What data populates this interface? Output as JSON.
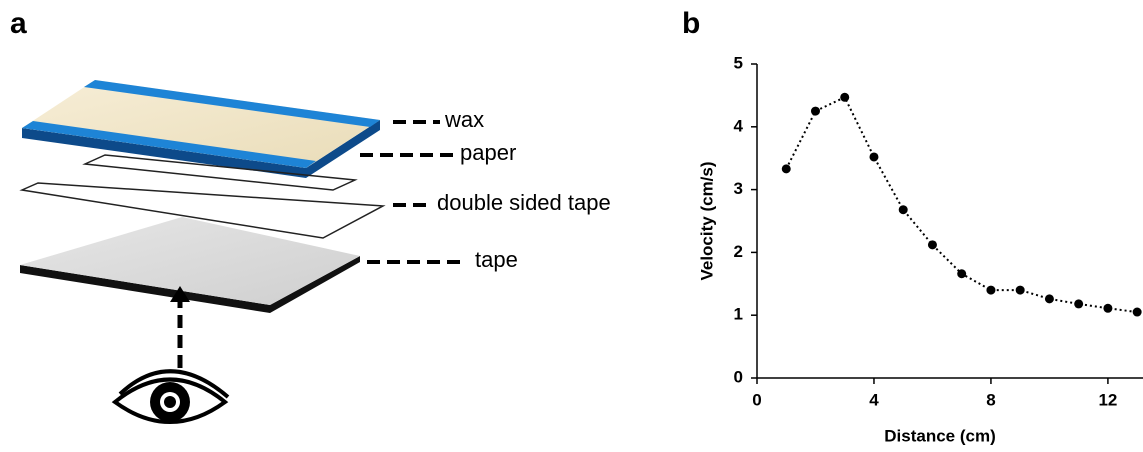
{
  "panels": {
    "a": "a",
    "b": "b"
  },
  "diagram": {
    "labels": [
      "wax",
      "paper",
      "double sided tape",
      "tape"
    ]
  },
  "chart_data": {
    "type": "line",
    "x_label": "Distance (cm)",
    "y_label": "Velocity (cm/s)",
    "x": [
      1,
      2,
      3,
      4,
      5,
      6,
      7,
      8,
      9,
      10,
      11,
      12,
      13
    ],
    "series": [
      {
        "color": "#000000",
        "values": [
          3.33,
          4.25,
          4.47,
          3.52,
          2.68,
          2.12,
          1.66,
          1.4,
          1.4,
          1.26,
          1.18,
          1.11,
          1.05
        ]
      }
    ],
    "xlim": [
      0,
      13.2
    ],
    "xticks": [
      0,
      4,
      8,
      12
    ],
    "ylim": [
      0,
      5
    ],
    "yticks": [
      0,
      1,
      2,
      3,
      4,
      5
    ]
  }
}
